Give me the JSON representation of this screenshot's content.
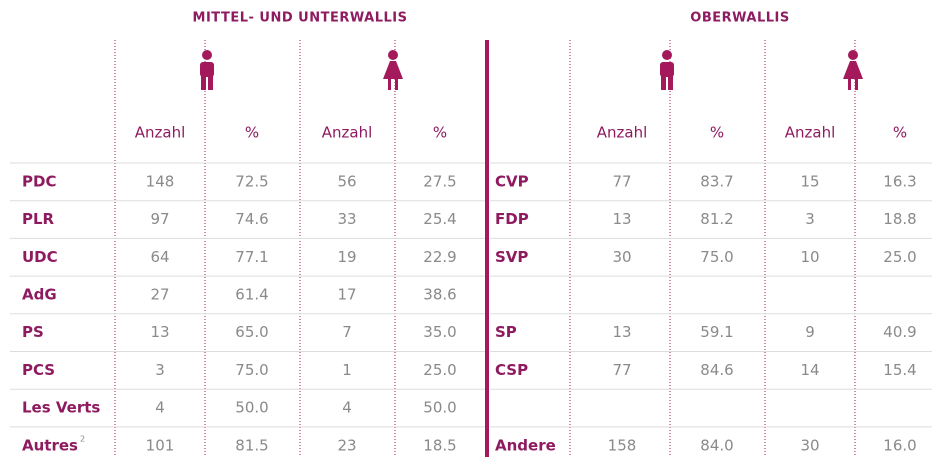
{
  "left": {
    "title": "MITTEL- UND UNTERWALLIS",
    "columns": [
      "Anzahl",
      "%",
      "Anzahl",
      "%"
    ],
    "rows": [
      {
        "label": "PDC",
        "cells": [
          "148",
          "72.5",
          "56",
          "27.5"
        ]
      },
      {
        "label": "PLR",
        "cells": [
          "97",
          "74.6",
          "33",
          "25.4"
        ]
      },
      {
        "label": "UDC",
        "cells": [
          "64",
          "77.1",
          "19",
          "22.9"
        ]
      },
      {
        "label": "AdG",
        "cells": [
          "27",
          "61.4",
          "17",
          "38.6"
        ]
      },
      {
        "label": "PS",
        "cells": [
          "13",
          "65.0",
          "7",
          "35.0"
        ]
      },
      {
        "label": "PCS",
        "cells": [
          "3",
          "75.0",
          "1",
          "25.0"
        ]
      },
      {
        "label": "Les Verts",
        "cells": [
          "4",
          "50.0",
          "4",
          "50.0"
        ]
      },
      {
        "label": "Autres",
        "note": "2",
        "cells": [
          "101",
          "81.5",
          "23",
          "18.5"
        ]
      }
    ]
  },
  "right": {
    "title": "OBERWALLIS",
    "columns": [
      "Anzahl",
      "%",
      "Anzahl",
      "%"
    ],
    "rows": [
      {
        "label": "CVP",
        "cells": [
          "77",
          "83.7",
          "15",
          "16.3"
        ]
      },
      {
        "label": "FDP",
        "cells": [
          "13",
          "81.2",
          "3",
          "18.8"
        ]
      },
      {
        "label": "SVP",
        "cells": [
          "30",
          "75.0",
          "10",
          "25.0"
        ]
      },
      null,
      {
        "label": "SP",
        "cells": [
          "13",
          "59.1",
          "9",
          "40.9"
        ]
      },
      {
        "label": "CSP",
        "cells": [
          "77",
          "84.6",
          "14",
          "15.4"
        ]
      },
      null,
      {
        "label": "Andere",
        "cells": [
          "158",
          "84.0",
          "30",
          "16.0"
        ]
      }
    ]
  }
}
